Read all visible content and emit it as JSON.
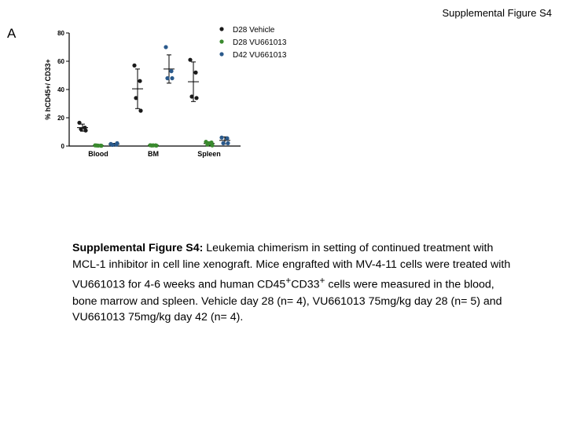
{
  "header": {
    "figure_title": "Supplemental Figure S4",
    "panel_letter": "A"
  },
  "chart_data": {
    "type": "scatter",
    "ylabel": "% hCD45+/ CD33+",
    "ylim": [
      0,
      80
    ],
    "yticks": [
      0,
      20,
      40,
      60,
      80
    ],
    "categories": [
      "Blood",
      "BM",
      "Spleen"
    ],
    "legend_position": "top-right",
    "grid": false,
    "series": [
      {
        "name": "D28 Vehicle",
        "color": "#1a1a1a",
        "points": [
          [
            16.5,
            13,
            12,
            11
          ],
          [
            57,
            46,
            34,
            25
          ],
          [
            61,
            52,
            35,
            34
          ]
        ],
        "mean": [
          13,
          40.5,
          45.5
        ],
        "sd": [
          2.5,
          14,
          14
        ]
      },
      {
        "name": "D28 VU661013",
        "color": "#3a8a2e",
        "points": [
          [
            0.5,
            0.3,
            0.4,
            0.2,
            0.3
          ],
          [
            0.6,
            0.5,
            0.4,
            0.3,
            0.5
          ],
          [
            3,
            2.5,
            1,
            0.5,
            2
          ]
        ],
        "mean": [
          0.3,
          0.5,
          1.8
        ],
        "sd": [
          0.2,
          0.2,
          1.2
        ]
      },
      {
        "name": "D42 VU661013",
        "color": "#2b5a8c",
        "points": [
          [
            1.5,
            1,
            0.8,
            2
          ],
          [
            70,
            53,
            48,
            48
          ],
          [
            6,
            5.5,
            2,
            2
          ]
        ],
        "mean": [
          1.3,
          54.5,
          4
        ],
        "sd": [
          0.6,
          10,
          2.5
        ]
      }
    ]
  },
  "caption": {
    "label": "Supplemental Figure S4:",
    "text": " Leukemia chimerism in setting of continued treatment with MCL-1 inhibitor in cell line xenograft.  Mice engrafted with MV-4-11 cells were treated with VU661013 for 4-6 weeks and human CD45",
    "sup1": "+",
    "text2": "CD33",
    "sup2": "+",
    "text3": " cells were measured in the blood, bone marrow and spleen.  Vehicle day 28 (n= 4), VU661013 75mg/kg day 28 (n= 5) and VU661013 75mg/kg day 42 (n= 4)."
  }
}
